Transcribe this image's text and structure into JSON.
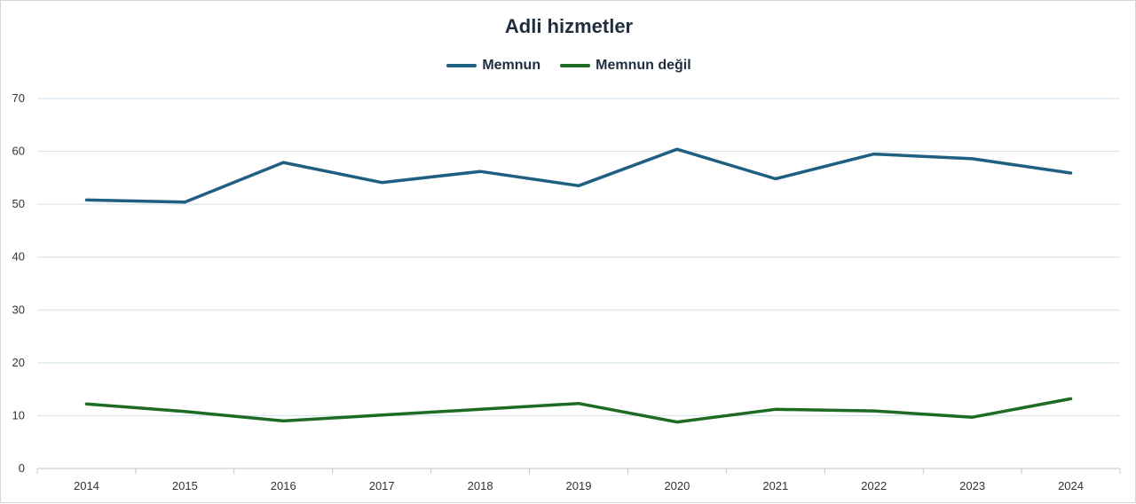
{
  "chart_data": {
    "type": "line",
    "title": "Adli hizmetler",
    "categories": [
      "2014",
      "2015",
      "2016",
      "2017",
      "2018",
      "2019",
      "2020",
      "2021",
      "2022",
      "2023",
      "2024"
    ],
    "series": [
      {
        "name": "Memnun",
        "color": "#1f5f82",
        "values": [
          50.8,
          50.4,
          57.9,
          54.1,
          56.2,
          53.5,
          60.4,
          54.8,
          59.5,
          58.6,
          55.9
        ]
      },
      {
        "name": "Memnun değil",
        "color": "#1e6b23",
        "values": [
          12.2,
          10.8,
          9.0,
          10.1,
          11.2,
          12.3,
          8.8,
          11.2,
          10.9,
          9.7,
          13.2
        ]
      }
    ],
    "ylim": [
      0,
      70
    ],
    "yticks": [
      0,
      10,
      20,
      30,
      40,
      50,
      60,
      70
    ],
    "xlabel": "",
    "ylabel": "",
    "grid": true,
    "legend_position": "top-center"
  }
}
